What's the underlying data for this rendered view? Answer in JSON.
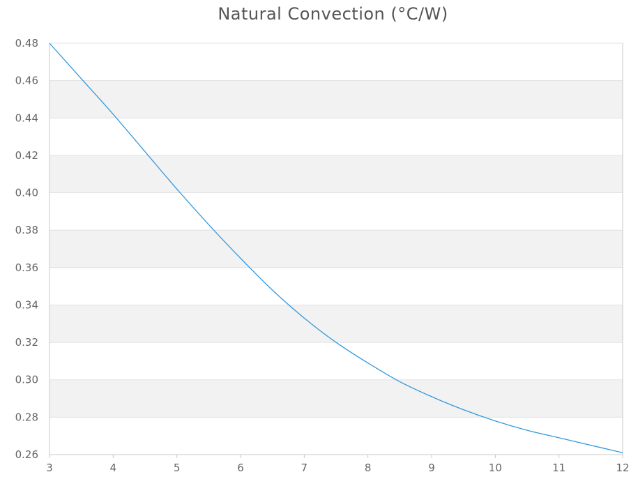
{
  "chart_data": {
    "type": "line",
    "title": "Natural Convection (°C/W)",
    "xlabel": "",
    "ylabel": "",
    "xlim": [
      3,
      12
    ],
    "ylim": [
      0.26,
      0.48
    ],
    "x_ticks": [
      "3",
      "4",
      "5",
      "6",
      "7",
      "8",
      "9",
      "10",
      "11",
      "12"
    ],
    "y_ticks": [
      "0.26",
      "0.28",
      "0.30",
      "0.32",
      "0.34",
      "0.36",
      "0.38",
      "0.40",
      "0.42",
      "0.44",
      "0.46",
      "0.48"
    ],
    "grid": true,
    "alternating_bands": true,
    "band_color": "#f2f2f2",
    "grid_color": "#e0e0e0",
    "axis_color": "#c8c8c8",
    "line_color": "#3399dd",
    "series": [
      {
        "x": [
          3,
          3.5,
          4,
          4.5,
          5,
          5.5,
          6,
          6.5,
          7,
          7.5,
          8,
          8.5,
          9,
          9.5,
          10,
          10.5,
          11,
          11.5,
          12
        ],
        "values": [
          0.48,
          0.461,
          0.442,
          0.422,
          0.402,
          0.383,
          0.365,
          0.348,
          0.333,
          0.32,
          0.309,
          0.299,
          0.291,
          0.284,
          0.278,
          0.273,
          0.269,
          0.265,
          0.261
        ]
      }
    ]
  }
}
